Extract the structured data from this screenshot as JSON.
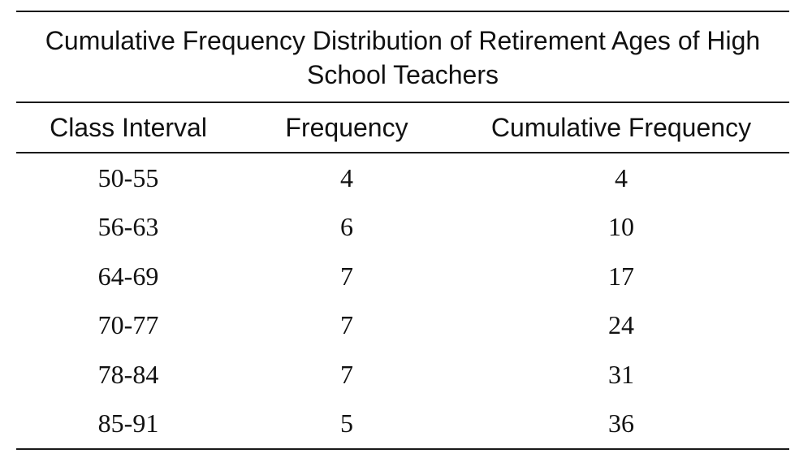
{
  "table": {
    "title": "Cumulative Frequency Distribution of Retirement Ages of High School Teachers",
    "columns": [
      "Class Interval",
      "Frequency",
      "Cumulative Frequency"
    ],
    "rows": [
      [
        "50-55",
        "4",
        "4"
      ],
      [
        "56-63",
        "6",
        "10"
      ],
      [
        "64-69",
        "7",
        "17"
      ],
      [
        "70-77",
        "7",
        "24"
      ],
      [
        "78-84",
        "7",
        "31"
      ],
      [
        "85-91",
        "5",
        "36"
      ]
    ]
  }
}
